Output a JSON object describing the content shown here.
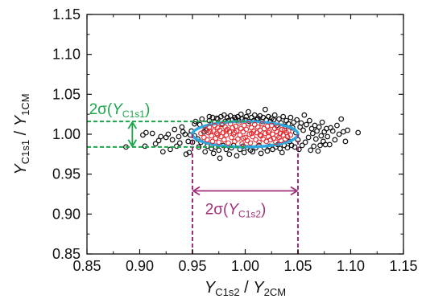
{
  "chart_data": {
    "type": "scatter",
    "title": "",
    "xlabel": {
      "parts": [
        {
          "t": "Y",
          "i": true
        },
        {
          "t": "C1s2",
          "s": true
        },
        {
          "t": " / "
        },
        {
          "t": "Y",
          "i": true
        },
        {
          "t": "2CM",
          "s": true
        }
      ]
    },
    "ylabel": {
      "parts": [
        {
          "t": "Y",
          "i": true
        },
        {
          "t": "C1s1",
          "s": true
        },
        {
          "t": " / "
        },
        {
          "t": "Y",
          "i": true
        },
        {
          "t": "1CM",
          "s": true
        }
      ]
    },
    "xlim": [
      0.85,
      1.15
    ],
    "ylim": [
      0.85,
      1.15
    ],
    "xticks": [
      "0.85",
      "0.90",
      "0.95",
      "1.00",
      "1.05",
      "1.10",
      "1.15"
    ],
    "yticks": [
      "0.85",
      "0.90",
      "0.95",
      "1.00",
      "1.05",
      "1.10",
      "1.15"
    ],
    "grid": false,
    "colors": {
      "black_points": "#111111",
      "red_points": "#e8262b",
      "ellipse": "#2ea8e0",
      "sigma_y": "#1aa64a",
      "sigma_x": "#a0307a"
    },
    "ellipse": {
      "center": [
        1.0,
        1.0
      ],
      "semi_x": 0.05,
      "semi_y": 0.016
    },
    "sigma_y_bracket": {
      "y_low": 0.984,
      "y_high": 1.016,
      "x_from": 0.85,
      "x_to": 1.0,
      "arrow_x": 0.893
    },
    "sigma_x_bracket": {
      "x_low": 0.95,
      "x_high": 1.05,
      "y_from": 0.85,
      "y_to": 1.0,
      "arrow_y": 0.929
    },
    "annotations": {
      "sigma_y": {
        "parts": [
          {
            "t": "2σ("
          },
          {
            "t": "Y",
            "i": true
          },
          {
            "t": "C1s1",
            "s": true
          },
          {
            "t": ")"
          }
        ],
        "x": 0.852,
        "y": 1.025
      },
      "sigma_x": {
        "parts": [
          {
            "t": "2σ("
          },
          {
            "t": "Y",
            "i": true
          },
          {
            "t": "C1s2",
            "s": true
          },
          {
            "t": ")"
          }
        ],
        "x": 0.962,
        "y": 0.9
      }
    },
    "series": [
      {
        "color": "#111111",
        "points": [
          [
            0.887,
            0.984
          ],
          [
            0.903,
            0.999
          ],
          [
            0.905,
            0.985
          ],
          [
            0.906,
            1.002
          ],
          [
            0.912,
            1.001
          ],
          [
            0.915,
            0.988
          ],
          [
            0.918,
            0.992
          ],
          [
            0.92,
            0.997
          ],
          [
            0.922,
            0.978
          ],
          [
            0.925,
            0.996
          ],
          [
            0.927,
            1.0
          ],
          [
            0.929,
            0.981
          ],
          [
            0.931,
            0.993
          ],
          [
            0.933,
            1.006
          ],
          [
            0.935,
            0.985
          ],
          [
            0.937,
            0.997
          ],
          [
            0.938,
            0.989
          ],
          [
            0.94,
            1.009
          ],
          [
            0.941,
            1.003
          ],
          [
            0.943,
            1.0
          ],
          [
            0.944,
            0.975
          ],
          [
            0.946,
            0.991
          ],
          [
            0.947,
            0.977
          ],
          [
            0.948,
            0.999
          ],
          [
            0.949,
            1.004
          ],
          [
            0.95,
            0.99
          ],
          [
            0.952,
            1.013
          ],
          [
            0.952,
            0.998
          ],
          [
            0.953,
            1.016
          ],
          [
            0.955,
            0.994
          ],
          [
            0.956,
            0.984
          ],
          [
            0.957,
            1.012
          ],
          [
            0.958,
            0.99
          ],
          [
            0.959,
            1.019
          ],
          [
            0.961,
            1.003
          ],
          [
            0.962,
            0.978
          ],
          [
            0.963,
            1.005
          ],
          [
            0.964,
            0.985
          ],
          [
            0.966,
            1.022
          ],
          [
            0.966,
            1.017
          ],
          [
            0.968,
            0.982
          ],
          [
            0.969,
            1.021
          ],
          [
            0.97,
            0.976
          ],
          [
            0.971,
            1.015
          ],
          [
            0.972,
            0.984
          ],
          [
            0.973,
            1.02
          ],
          [
            0.974,
            1.019
          ],
          [
            0.975,
            0.98
          ],
          [
            0.976,
            0.97
          ],
          [
            0.977,
            1.022
          ],
          [
            0.978,
            1.013
          ],
          [
            0.979,
            0.986
          ],
          [
            0.98,
            1.024
          ],
          [
            0.981,
            1.016
          ],
          [
            0.982,
            0.981
          ],
          [
            0.983,
            1.021
          ],
          [
            0.984,
            1.017
          ],
          [
            0.985,
            0.975
          ],
          [
            0.986,
            1.023
          ],
          [
            0.987,
            0.983
          ],
          [
            0.988,
            1.018
          ],
          [
            0.989,
            0.986
          ],
          [
            0.99,
            1.021
          ],
          [
            0.991,
            1.019
          ],
          [
            0.992,
            0.973
          ],
          [
            0.993,
            1.022
          ],
          [
            0.994,
            1.017
          ],
          [
            0.995,
            0.981
          ],
          [
            0.996,
            1.025
          ],
          [
            0.997,
            1.019
          ],
          [
            0.998,
            0.985
          ],
          [
            0.999,
            0.977
          ],
          [
            1.0,
            1.018
          ],
          [
            1.001,
            1.022
          ],
          [
            1.002,
            0.983
          ],
          [
            1.003,
            1.028
          ],
          [
            1.004,
            1.016
          ],
          [
            1.005,
            0.98
          ],
          [
            1.006,
            1.021
          ],
          [
            1.007,
            0.978
          ],
          [
            1.008,
            1.017
          ],
          [
            1.009,
            1.024
          ],
          [
            1.01,
            0.983
          ],
          [
            1.011,
            1.018
          ],
          [
            1.012,
            1.02
          ],
          [
            1.013,
            0.986
          ],
          [
            1.014,
            1.023
          ],
          [
            1.015,
            0.976
          ],
          [
            1.016,
            1.016
          ],
          [
            1.017,
            1.021
          ],
          [
            1.018,
            0.983
          ],
          [
            1.019,
            1.031
          ],
          [
            1.02,
            1.018
          ],
          [
            1.021,
            0.979
          ],
          [
            1.022,
            1.022
          ],
          [
            1.023,
            0.985
          ],
          [
            1.024,
            1.016
          ],
          [
            1.025,
            1.02
          ],
          [
            1.026,
            0.981
          ],
          [
            1.027,
            1.018
          ],
          [
            1.028,
            1.024
          ],
          [
            1.029,
            0.984
          ],
          [
            1.03,
            1.011
          ],
          [
            1.031,
            0.987
          ],
          [
            1.032,
            1.019
          ],
          [
            1.033,
            0.982
          ],
          [
            1.034,
            1.014
          ],
          [
            1.035,
            0.977
          ],
          [
            1.036,
            1.022
          ],
          [
            1.037,
            0.986
          ],
          [
            1.038,
            1.01
          ],
          [
            1.039,
            1.017
          ],
          [
            1.04,
            0.983
          ],
          [
            1.041,
            1.013
          ],
          [
            1.042,
            0.991
          ],
          [
            1.043,
            1.021
          ],
          [
            1.044,
            0.986
          ],
          [
            1.045,
            1.008
          ],
          [
            1.046,
            1.015
          ],
          [
            1.047,
            0.984
          ],
          [
            1.048,
            1.002
          ],
          [
            1.049,
            1.018
          ],
          [
            1.05,
            0.993
          ],
          [
            1.051,
            0.981
          ],
          [
            1.052,
            1.009
          ],
          [
            1.053,
            1.014
          ],
          [
            1.054,
            0.986
          ],
          [
            1.055,
            1.005
          ],
          [
            1.056,
            1.024
          ],
          [
            1.057,
            0.99
          ],
          [
            1.058,
            1.012
          ],
          [
            1.06,
            0.996
          ],
          [
            1.061,
            1.017
          ],
          [
            1.062,
            0.98
          ],
          [
            1.063,
            1.007
          ],
          [
            1.064,
            1.001
          ],
          [
            1.065,
            0.985
          ],
          [
            1.066,
            1.011
          ],
          [
            1.067,
            0.994
          ],
          [
            1.068,
            1.004
          ],
          [
            1.069,
            0.979
          ],
          [
            1.07,
            1.009
          ],
          [
            1.071,
            0.986
          ],
          [
            1.072,
            0.998
          ],
          [
            1.073,
            1.015
          ],
          [
            1.074,
            0.991
          ],
          [
            1.075,
            1.003
          ],
          [
            1.076,
            0.987
          ],
          [
            1.077,
            1.007
          ],
          [
            1.078,
            0.997
          ],
          [
            1.08,
            0.987
          ],
          [
            1.081,
            1.008
          ],
          [
            1.083,
            1.004
          ],
          [
            1.085,
            0.993
          ],
          [
            1.087,
            1.011
          ],
          [
            1.089,
            1.0
          ],
          [
            1.091,
            1.019
          ],
          [
            1.093,
            1.003
          ],
          [
            1.095,
            0.991
          ],
          [
            1.097,
            1.005
          ],
          [
            1.107,
            1.002
          ]
        ]
      },
      {
        "color": "#e8262b",
        "points": [
          [
            0.958,
            1.001
          ],
          [
            0.961,
            0.996
          ],
          [
            0.962,
            1.006
          ],
          [
            0.964,
            0.993
          ],
          [
            0.965,
            1.002
          ],
          [
            0.966,
            1.009
          ],
          [
            0.968,
            0.998
          ],
          [
            0.969,
            0.991
          ],
          [
            0.97,
            1.004
          ],
          [
            0.971,
            1.011
          ],
          [
            0.972,
            0.995
          ],
          [
            0.973,
            1.001
          ],
          [
            0.974,
            1.008
          ],
          [
            0.975,
            0.99
          ],
          [
            0.976,
            1.005
          ],
          [
            0.977,
            0.997
          ],
          [
            0.978,
            1.012
          ],
          [
            0.979,
            1.002
          ],
          [
            0.98,
            0.993
          ],
          [
            0.981,
            1.009
          ],
          [
            0.982,
            0.999
          ],
          [
            0.983,
            1.006
          ],
          [
            0.984,
            0.989
          ],
          [
            0.985,
            1.003
          ],
          [
            0.986,
            1.013
          ],
          [
            0.987,
            0.996
          ],
          [
            0.988,
            1.008
          ],
          [
            0.989,
            1.0
          ],
          [
            0.99,
            0.991
          ],
          [
            0.991,
            1.01
          ],
          [
            0.992,
            1.004
          ],
          [
            0.993,
            0.994
          ],
          [
            0.994,
            1.014
          ],
          [
            0.995,
            0.999
          ],
          [
            0.996,
            1.007
          ],
          [
            0.997,
            0.988
          ],
          [
            0.998,
            1.003
          ],
          [
            0.999,
            1.011
          ],
          [
            1.0,
            0.996
          ],
          [
            1.001,
            1.006
          ],
          [
            1.002,
            0.992
          ],
          [
            1.003,
            1.013
          ],
          [
            1.004,
            1.0
          ],
          [
            1.005,
            0.989
          ],
          [
            1.006,
            1.008
          ],
          [
            1.007,
            0.997
          ],
          [
            1.008,
            1.004
          ],
          [
            1.009,
            1.012
          ],
          [
            1.01,
            0.993
          ],
          [
            1.011,
            1.002
          ],
          [
            1.012,
            1.009
          ],
          [
            1.013,
            0.99
          ],
          [
            1.014,
            1.005
          ],
          [
            1.015,
            0.998
          ],
          [
            1.016,
            1.013
          ],
          [
            1.017,
            0.994
          ],
          [
            1.018,
            1.007
          ],
          [
            1.019,
            1.001
          ],
          [
            1.02,
            0.991
          ],
          [
            1.021,
            1.01
          ],
          [
            1.022,
            0.997
          ],
          [
            1.023,
            1.004
          ],
          [
            1.024,
            0.993
          ],
          [
            1.025,
            1.011
          ],
          [
            1.026,
            1.0
          ],
          [
            1.027,
            0.995
          ],
          [
            1.028,
            1.007
          ],
          [
            1.029,
            0.99
          ],
          [
            1.03,
            1.003
          ],
          [
            1.031,
            1.009
          ],
          [
            1.032,
            0.996
          ],
          [
            1.033,
            1.001
          ],
          [
            1.034,
            0.992
          ],
          [
            1.035,
            1.006
          ],
          [
            1.036,
            0.999
          ],
          [
            1.037,
            1.005
          ],
          [
            1.038,
            0.994
          ],
          [
            1.039,
            1.002
          ],
          [
            1.04,
            0.997
          ],
          [
            1.041,
            1.004
          ],
          [
            1.043,
            0.999
          ],
          [
            0.967,
            1.003
          ],
          [
            0.974,
            0.999
          ],
          [
            0.982,
            1.004
          ],
          [
            0.99,
            1.002
          ],
          [
            0.998,
            0.995
          ],
          [
            1.006,
            1.001
          ],
          [
            1.014,
            0.999
          ],
          [
            1.022,
            1.002
          ],
          [
            1.03,
            0.998
          ]
        ]
      }
    ]
  }
}
